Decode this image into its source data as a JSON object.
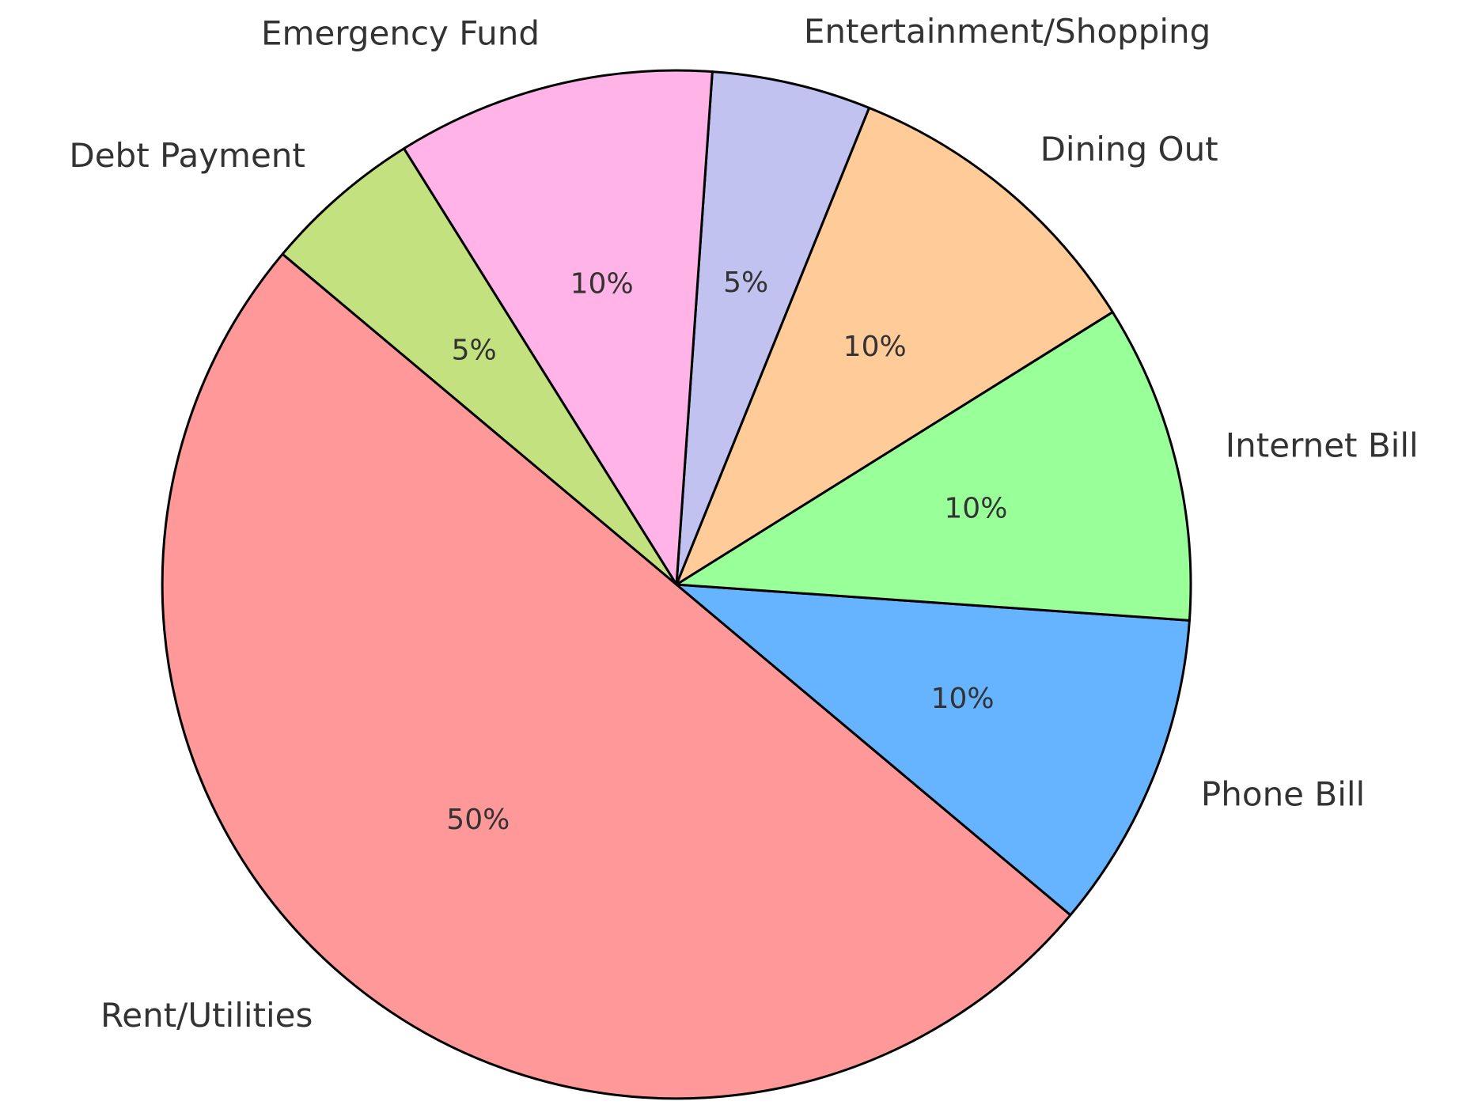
{
  "chart_data": {
    "type": "pie",
    "categories": [
      "Rent/Utilities",
      "Phone Bill",
      "Internet Bill",
      "Dining Out",
      "Entertainment/Shopping",
      "Emergency Fund",
      "Debt Payment"
    ],
    "values": [
      50,
      10,
      10,
      10,
      5,
      10,
      5
    ],
    "value_labels": [
      "50%",
      "10%",
      "10%",
      "10%",
      "5%",
      "10%",
      "5%"
    ],
    "colors": [
      "#ff9999",
      "#66b3ff",
      "#99ff99",
      "#ffcc99",
      "#c2c2f0",
      "#ffb3e6",
      "#c4e17f"
    ]
  }
}
